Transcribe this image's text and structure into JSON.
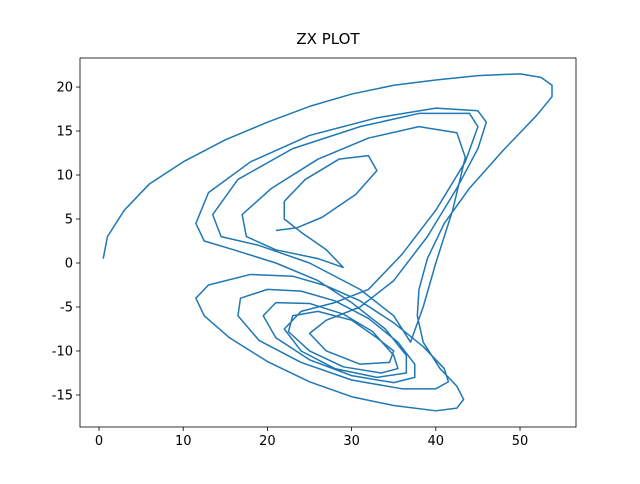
{
  "chart_data": {
    "type": "line",
    "title": "ZX PLOT",
    "xlim": [
      -2.26,
      56.65
    ],
    "xticks": [
      0,
      10,
      20,
      30,
      40,
      50
    ],
    "ylim": [
      -18.64,
      23.3
    ],
    "yticks": [
      -15,
      -10,
      -5,
      0,
      5,
      10,
      15,
      20
    ],
    "series": [
      {
        "color": "#1f77b4",
        "x": [
          0.5,
          1,
          3,
          6,
          10,
          15,
          20,
          25,
          30,
          35,
          40,
          45,
          50,
          52.5,
          53.8,
          53.8,
          52,
          48,
          44,
          41,
          39,
          38,
          37.8,
          38.5,
          40.5,
          42.5,
          43.3,
          42.5,
          40,
          35,
          30,
          25,
          20,
          15.5,
          12.5,
          11.5,
          13,
          18,
          23,
          27,
          31,
          35,
          38.5,
          41,
          41.5,
          40,
          36,
          30,
          24,
          19,
          16.5,
          16.8,
          20,
          24,
          28,
          32,
          35.5,
          37.5,
          37.5,
          35,
          30,
          25,
          21,
          19.5,
          21,
          25,
          29,
          32.5,
          35,
          35.5,
          33.5,
          29,
          25,
          22.5,
          23,
          26,
          30,
          33,
          35,
          34.5,
          31,
          27,
          25,
          27,
          31,
          35,
          39,
          42.5,
          45,
          46,
          45,
          40,
          33,
          25,
          18,
          13,
          11.5,
          12.5,
          16,
          21,
          26,
          30,
          34,
          36.5,
          36.5,
          33,
          28,
          24,
          22,
          24,
          28,
          32,
          36,
          40,
          43.5,
          45,
          44,
          38,
          31,
          23,
          16.5,
          13.5,
          14.5,
          19,
          25,
          31,
          35,
          37,
          38.5,
          40,
          42,
          43.5,
          42.5,
          38,
          32,
          26,
          20.5,
          17,
          17.5,
          21,
          26,
          29,
          27,
          24,
          22,
          22,
          24.5,
          28.5,
          32,
          33,
          30.5,
          26.5,
          23.5,
          21
        ],
        "values": [
          0.5,
          3,
          6,
          9,
          11.5,
          14,
          16,
          17.8,
          19.2,
          20.2,
          20.8,
          21.3,
          21.5,
          21.1,
          20.2,
          18.9,
          16.8,
          12.8,
          8.5,
          4.5,
          0.5,
          -3,
          -6,
          -9,
          -12,
          -14,
          -15.5,
          -16.5,
          -16.8,
          -16.2,
          -15.2,
          -13.5,
          -11.2,
          -8.5,
          -6,
          -4,
          -2.5,
          -1.3,
          -1.5,
          -2.6,
          -4.3,
          -6.8,
          -9.5,
          -12,
          -13.5,
          -14.3,
          -14.3,
          -13.3,
          -11.3,
          -8.8,
          -6,
          -4,
          -3,
          -3.2,
          -4.3,
          -6.3,
          -9,
          -11.5,
          -13,
          -13.6,
          -12.8,
          -11,
          -8.5,
          -6,
          -4.5,
          -4.6,
          -5.8,
          -7.8,
          -10.5,
          -12,
          -12.5,
          -11.8,
          -10,
          -7.8,
          -6,
          -5.5,
          -6.5,
          -8.5,
          -10,
          -11.3,
          -11.5,
          -10,
          -8,
          -6.5,
          -5,
          -2,
          3,
          8.5,
          13,
          16,
          17.3,
          17.6,
          16.5,
          14.5,
          11.5,
          8,
          4.5,
          2.5,
          1.5,
          0,
          -2,
          -4.5,
          -7.5,
          -10.5,
          -12.5,
          -13,
          -12,
          -10,
          -7.5,
          -5.5,
          -4.5,
          -3,
          1,
          6,
          11.5,
          15.5,
          17,
          17,
          15.5,
          13,
          9.5,
          5.5,
          3,
          2,
          0,
          -3,
          -6,
          -9,
          -5,
          0,
          6,
          12,
          14.8,
          15.5,
          14.2,
          11.8,
          8.5,
          5.5,
          3,
          1.5,
          0.5,
          -0.5,
          1.5,
          3.5,
          5,
          7,
          9.5,
          11.8,
          12.2,
          10.5,
          7.8,
          5.2,
          4,
          3.7
        ]
      }
    ]
  }
}
